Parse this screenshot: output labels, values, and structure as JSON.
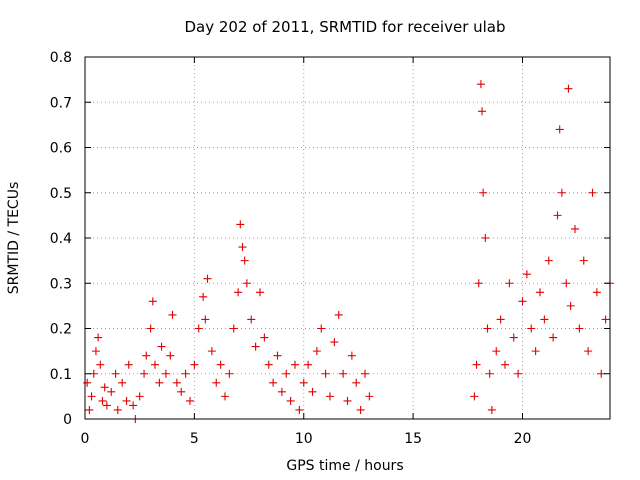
{
  "chart_data": {
    "type": "scatter",
    "title": "Day 202 of 2011, SRMTID for receiver ulab",
    "xlabel": "GPS time / hours",
    "ylabel": "SRMTID / TECUs",
    "xlim": [
      0,
      24
    ],
    "ylim": [
      0,
      0.8
    ],
    "xticks": [
      0,
      5,
      10,
      15,
      20
    ],
    "yticks": [
      0,
      0.1,
      0.2,
      0.3,
      0.4,
      0.5,
      0.6,
      0.7,
      0.8
    ],
    "xtick_labels": [
      "0",
      "5",
      "10",
      "15",
      "20"
    ],
    "ytick_labels": [
      "0",
      "0.1",
      "0.2",
      "0.3",
      "0.4",
      "0.5",
      "0.6",
      "0.7",
      "0.8"
    ],
    "grid": true,
    "marker": "+",
    "marker_color": "#e00000",
    "series": [
      {
        "name": "SRMTID",
        "data_note": "approximate scatter; data present 0–13 h and 17.8–24 h, gap 13–17.8 h",
        "points": [
          [
            0.1,
            0.08
          ],
          [
            0.2,
            0.02
          ],
          [
            0.3,
            0.05
          ],
          [
            0.4,
            0.1
          ],
          [
            0.5,
            0.15
          ],
          [
            0.6,
            0.18
          ],
          [
            0.7,
            0.12
          ],
          [
            0.8,
            0.04
          ],
          [
            0.9,
            0.07
          ],
          [
            1.0,
            0.03
          ],
          [
            1.2,
            0.06
          ],
          [
            1.4,
            0.1
          ],
          [
            1.5,
            0.02
          ],
          [
            1.7,
            0.08
          ],
          [
            1.9,
            0.04
          ],
          [
            2.0,
            0.12
          ],
          [
            2.2,
            0.03
          ],
          [
            2.3,
            0.0
          ],
          [
            2.5,
            0.05
          ],
          [
            2.7,
            0.1
          ],
          [
            2.8,
            0.14
          ],
          [
            3.0,
            0.2
          ],
          [
            3.1,
            0.26
          ],
          [
            3.2,
            0.12
          ],
          [
            3.4,
            0.08
          ],
          [
            3.5,
            0.16
          ],
          [
            3.7,
            0.1
          ],
          [
            3.9,
            0.14
          ],
          [
            4.0,
            0.23
          ],
          [
            4.2,
            0.08
          ],
          [
            4.4,
            0.06
          ],
          [
            4.6,
            0.1
          ],
          [
            4.8,
            0.04
          ],
          [
            5.0,
            0.12
          ],
          [
            5.2,
            0.2
          ],
          [
            5.4,
            0.27
          ],
          [
            5.5,
            0.22
          ],
          [
            5.6,
            0.31
          ],
          [
            5.8,
            0.15
          ],
          [
            6.0,
            0.08
          ],
          [
            6.2,
            0.12
          ],
          [
            6.4,
            0.05
          ],
          [
            6.6,
            0.1
          ],
          [
            6.8,
            0.2
          ],
          [
            7.0,
            0.28
          ],
          [
            7.1,
            0.43
          ],
          [
            7.2,
            0.38
          ],
          [
            7.3,
            0.35
          ],
          [
            7.4,
            0.3
          ],
          [
            7.6,
            0.22
          ],
          [
            7.8,
            0.16
          ],
          [
            8.0,
            0.28
          ],
          [
            8.2,
            0.18
          ],
          [
            8.4,
            0.12
          ],
          [
            8.6,
            0.08
          ],
          [
            8.8,
            0.14
          ],
          [
            9.0,
            0.06
          ],
          [
            9.2,
            0.1
          ],
          [
            9.4,
            0.04
          ],
          [
            9.6,
            0.12
          ],
          [
            9.8,
            0.02
          ],
          [
            10.0,
            0.08
          ],
          [
            10.2,
            0.12
          ],
          [
            10.4,
            0.06
          ],
          [
            10.6,
            0.15
          ],
          [
            10.8,
            0.2
          ],
          [
            11.0,
            0.1
          ],
          [
            11.2,
            0.05
          ],
          [
            11.4,
            0.17
          ],
          [
            11.6,
            0.23
          ],
          [
            11.8,
            0.1
          ],
          [
            12.0,
            0.04
          ],
          [
            12.2,
            0.14
          ],
          [
            12.4,
            0.08
          ],
          [
            12.6,
            0.02
          ],
          [
            12.8,
            0.1
          ],
          [
            13.0,
            0.05
          ],
          [
            17.8,
            0.05
          ],
          [
            17.9,
            0.12
          ],
          [
            18.0,
            0.3
          ],
          [
            18.1,
            0.74
          ],
          [
            18.15,
            0.68
          ],
          [
            18.2,
            0.5
          ],
          [
            18.3,
            0.4
          ],
          [
            18.4,
            0.2
          ],
          [
            18.5,
            0.1
          ],
          [
            18.6,
            0.02
          ],
          [
            18.8,
            0.15
          ],
          [
            19.0,
            0.22
          ],
          [
            19.2,
            0.12
          ],
          [
            19.4,
            0.3
          ],
          [
            19.6,
            0.18
          ],
          [
            19.8,
            0.1
          ],
          [
            20.0,
            0.26
          ],
          [
            20.2,
            0.32
          ],
          [
            20.4,
            0.2
          ],
          [
            20.6,
            0.15
          ],
          [
            20.8,
            0.28
          ],
          [
            21.0,
            0.22
          ],
          [
            21.2,
            0.35
          ],
          [
            21.4,
            0.18
          ],
          [
            21.6,
            0.45
          ],
          [
            21.7,
            0.64
          ],
          [
            21.8,
            0.5
          ],
          [
            22.0,
            0.3
          ],
          [
            22.1,
            0.73
          ],
          [
            22.2,
            0.25
          ],
          [
            22.4,
            0.42
          ],
          [
            22.6,
            0.2
          ],
          [
            22.8,
            0.35
          ],
          [
            23.0,
            0.15
          ],
          [
            23.2,
            0.5
          ],
          [
            23.4,
            0.28
          ],
          [
            23.6,
            0.1
          ],
          [
            23.8,
            0.22
          ],
          [
            24.0,
            0.3
          ]
        ]
      }
    ]
  }
}
